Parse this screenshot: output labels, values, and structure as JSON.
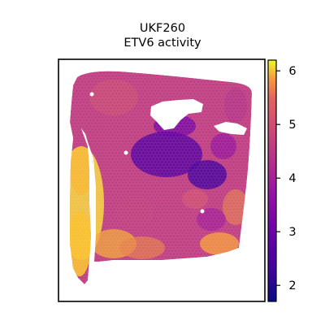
{
  "chart_data": {
    "type": "heatmap",
    "title": "UKF260",
    "subtitle": "ETV6 activity",
    "xlabel": "",
    "ylabel": "",
    "grid": false,
    "legend": "colorbar-right",
    "colormap": "plasma",
    "colorbar": {
      "range": [
        1.7,
        6.2
      ],
      "ticks": [
        2,
        3,
        4,
        5,
        6
      ],
      "tick_labels": [
        "2",
        "3",
        "4",
        "5",
        "6"
      ]
    }
  }
}
